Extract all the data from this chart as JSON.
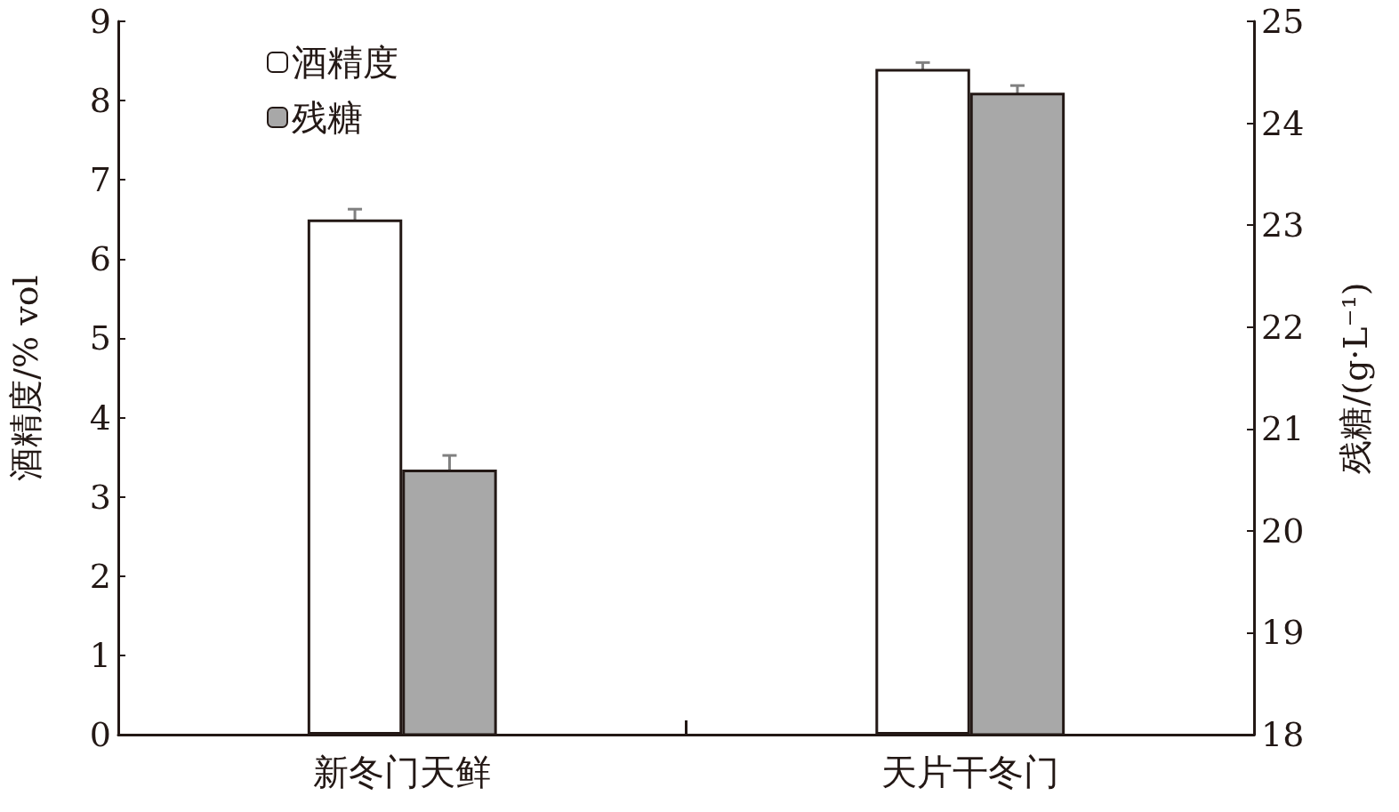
{
  "chart_data": {
    "type": "bar",
    "categories": [
      "新冬门天鲜",
      "天片干冬门"
    ],
    "ylabel": "酒精度/% vol",
    "y2label": "残糖/(g·L⁻¹)",
    "series": [
      {
        "name": "酒精度",
        "color": "#ffffff",
        "values": [
          6.5,
          8.4
        ],
        "errors": [
          0.13,
          0.08
        ]
      },
      {
        "name": "残糖",
        "color": "#a8a8a8",
        "values": [
          20.6,
          24.3
        ],
        "errors": [
          0.14,
          0.07
        ],
        "axis": "y2"
      }
    ],
    "ylim": [
      0,
      9
    ],
    "yticks": [
      0,
      1,
      2,
      3,
      4,
      5,
      6,
      7,
      8,
      9
    ],
    "y2lim": [
      18,
      25
    ],
    "y2ticks": [
      18,
      19,
      20,
      21,
      22,
      23,
      24,
      25
    ],
    "legend": "top left",
    "grid": false
  }
}
